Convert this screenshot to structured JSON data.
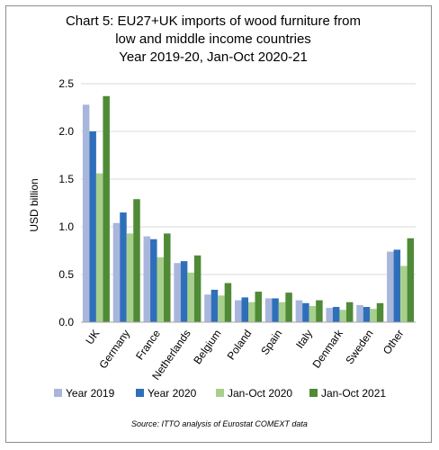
{
  "chart_data": {
    "type": "bar",
    "title_lines": [
      "Chart 5: EU27+UK imports of wood furniture from",
      "low and middle income countries",
      "Year 2019-20, Jan-Oct 2020-21"
    ],
    "ylabel": "USD billion",
    "xlabel": "",
    "ylim": [
      0,
      2.5
    ],
    "yticks": [
      "0.0",
      "0.5",
      "1.0",
      "1.5",
      "2.0",
      "2.5"
    ],
    "grid": true,
    "legend_position": "bottom",
    "categories": [
      "UK",
      "Germany",
      "France",
      "Netherlands",
      "Belgium",
      "Poland",
      "Spain",
      "Italy",
      "Denmark",
      "Sweden",
      "Other"
    ],
    "series": [
      {
        "name": "Year 2019",
        "color": "#a9b6dc",
        "values": [
          2.28,
          1.04,
          0.9,
          0.62,
          0.29,
          0.23,
          0.25,
          0.23,
          0.15,
          0.18,
          0.74
        ]
      },
      {
        "name": "Year 2020",
        "color": "#2f6fba",
        "values": [
          2.0,
          1.15,
          0.87,
          0.64,
          0.34,
          0.26,
          0.25,
          0.2,
          0.16,
          0.16,
          0.76
        ]
      },
      {
        "name": "Jan-Oct 2020",
        "color": "#a8d08d",
        "values": [
          1.56,
          0.93,
          0.68,
          0.52,
          0.28,
          0.21,
          0.21,
          0.17,
          0.13,
          0.14,
          0.59
        ]
      },
      {
        "name": "Jan-Oct 2021",
        "color": "#4f8a36",
        "values": [
          2.37,
          1.29,
          0.93,
          0.7,
          0.41,
          0.32,
          0.31,
          0.23,
          0.21,
          0.2,
          0.88
        ]
      }
    ],
    "source": "Source: ITTO analysis of Eurostat COMEXT data"
  }
}
